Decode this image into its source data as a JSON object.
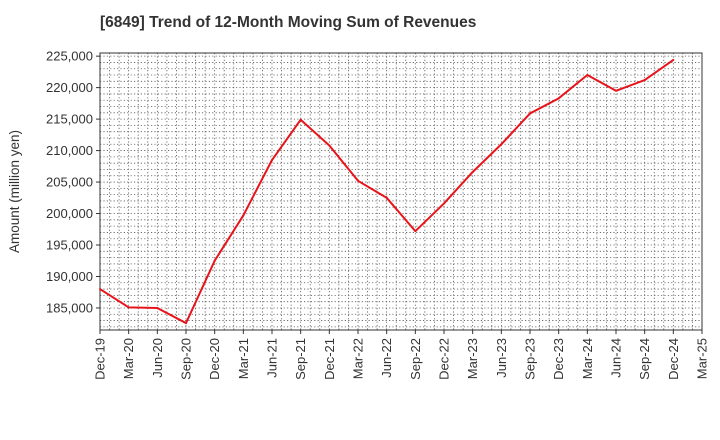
{
  "chart_data": {
    "type": "line",
    "title": "[6849]  Trend of 12-Month Moving Sum of Revenues",
    "xlabel": "",
    "ylabel": "Amount (million yen)",
    "ylim": [
      181500,
      225500
    ],
    "yticks": [
      185000,
      190000,
      195000,
      200000,
      205000,
      210000,
      215000,
      220000,
      225000
    ],
    "ytick_labels": [
      "185,000",
      "190,000",
      "195,000",
      "200,000",
      "205,000",
      "210,000",
      "215,000",
      "220,000",
      "225,000"
    ],
    "categories": [
      "Dec-19",
      "Mar-20",
      "Jun-20",
      "Sep-20",
      "Dec-20",
      "Mar-21",
      "Jun-21",
      "Sep-21",
      "Dec-21",
      "Mar-22",
      "Jun-22",
      "Sep-22",
      "Dec-22",
      "Mar-23",
      "Jun-23",
      "Sep-23",
      "Dec-23",
      "Mar-24",
      "Jun-24",
      "Sep-24",
      "Dec-24",
      "Mar-25"
    ],
    "grid": true,
    "series": [
      {
        "color": "#e8141b",
        "values": [
          188000,
          185100,
          185000,
          182600,
          192500,
          199700,
          208500,
          214900,
          210800,
          205200,
          202500,
          197200,
          201600,
          206600,
          211000,
          215900,
          218300,
          222000,
          219500,
          221200,
          224400,
          null
        ]
      }
    ]
  }
}
